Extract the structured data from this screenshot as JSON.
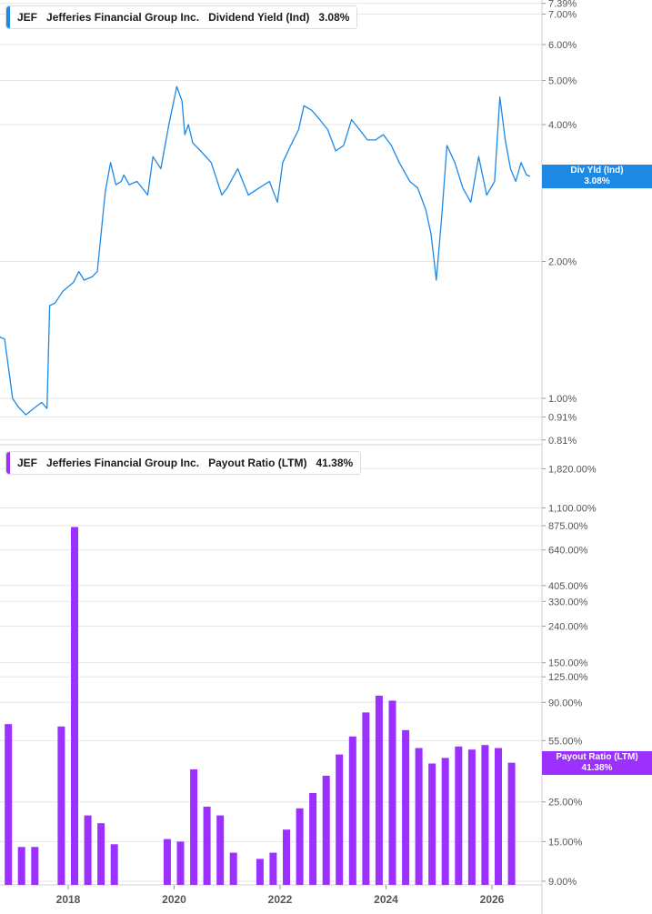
{
  "colors": {
    "yield": "#1e88e5",
    "payout": "#9b30ff",
    "grid": "#e6e6e6",
    "axis_text": "#555555"
  },
  "top_legend": {
    "ticker": "JEF",
    "company": "Jefferies Financial Group Inc.",
    "metric": "Dividend Yield (Ind)",
    "value": "3.08%"
  },
  "bottom_legend": {
    "ticker": "JEF",
    "company": "Jefferies Financial Group Inc.",
    "metric": "Payout Ratio (LTM)",
    "value": "41.38%"
  },
  "yield_tag": {
    "label": "Div Yld (Ind)",
    "value": "3.08%"
  },
  "payout_tag": {
    "label": "Payout Ratio (LTM)",
    "value": "41.38%"
  },
  "chart_data": [
    {
      "type": "line",
      "title": "Dividend Yield (Ind)",
      "scale": "log",
      "y_ticks": [
        "7.39%",
        "7.00%",
        "6.00%",
        "5.00%",
        "4.00%",
        "2.00%",
        "1.00%",
        "0.91%",
        "0.81%"
      ],
      "y_tick_values": [
        7.39,
        7.0,
        6.0,
        5.0,
        4.0,
        2.0,
        1.0,
        0.91,
        0.81
      ],
      "x_ticks": [
        "2018",
        "2020",
        "2022",
        "2024",
        "2026"
      ],
      "series": [
        {
          "name": "Dividend Yield (Ind)",
          "x": [
            2016.6,
            2016.8,
            2016.95,
            2017.05,
            2017.2,
            2017.35,
            2017.5,
            2017.6,
            2017.65,
            2017.75,
            2017.9,
            2018.1,
            2018.2,
            2018.3,
            2018.45,
            2018.55,
            2018.7,
            2018.8,
            2018.9,
            2019.0,
            2019.05,
            2019.15,
            2019.3,
            2019.5,
            2019.6,
            2019.75,
            2019.9,
            2020.05,
            2020.15,
            2020.2,
            2020.27,
            2020.35,
            2020.5,
            2020.7,
            2020.9,
            2021.0,
            2021.2,
            2021.4,
            2021.6,
            2021.8,
            2021.95,
            2022.05,
            2022.2,
            2022.35,
            2022.45,
            2022.6,
            2022.75,
            2022.9,
            2023.05,
            2023.2,
            2023.35,
            2023.5,
            2023.65,
            2023.8,
            2023.95,
            2024.1,
            2024.25,
            2024.45,
            2024.6,
            2024.75,
            2024.85,
            2024.95,
            2025.05,
            2025.15,
            2025.3,
            2025.45,
            2025.6,
            2025.75,
            2025.9,
            2026.05,
            2026.15,
            2026.25,
            2026.35,
            2026.45,
            2026.55,
            2026.65,
            2026.72
          ],
          "y": [
            1.38,
            1.35,
            1.0,
            0.96,
            0.92,
            0.95,
            0.98,
            0.95,
            1.6,
            1.62,
            1.72,
            1.8,
            1.9,
            1.82,
            1.85,
            1.9,
            2.85,
            3.3,
            2.95,
            3.0,
            3.1,
            2.95,
            3.0,
            2.8,
            3.4,
            3.2,
            4.0,
            4.85,
            4.5,
            3.8,
            4.0,
            3.65,
            3.5,
            3.3,
            2.8,
            2.9,
            3.2,
            2.8,
            2.9,
            3.0,
            2.7,
            3.3,
            3.6,
            3.9,
            4.4,
            4.3,
            4.1,
            3.9,
            3.5,
            3.6,
            4.1,
            3.9,
            3.7,
            3.7,
            3.8,
            3.6,
            3.3,
            3.0,
            2.9,
            2.6,
            2.3,
            1.82,
            2.5,
            3.6,
            3.3,
            2.9,
            2.7,
            3.4,
            2.8,
            3.0,
            4.6,
            3.7,
            3.2,
            3.0,
            3.3,
            3.1,
            3.08
          ]
        }
      ]
    },
    {
      "type": "bar",
      "title": "Payout Ratio (LTM)",
      "scale": "log",
      "y_ticks": [
        "1,820.00%",
        "1,100.00%",
        "875.00%",
        "640.00%",
        "405.00%",
        "330.00%",
        "240.00%",
        "150.00%",
        "125.00%",
        "90.00%",
        "55.00%",
        "25.00%",
        "15.00%",
        "9.00%"
      ],
      "y_tick_values": [
        1820,
        1100,
        875,
        640,
        405,
        330,
        240,
        150,
        125,
        90,
        55,
        25,
        15,
        9
      ],
      "x_ticks": [
        "2018",
        "2020",
        "2022",
        "2024",
        "2026"
      ],
      "series": [
        {
          "name": "Payout Ratio (LTM)",
          "x": [
            2016.62,
            2016.87,
            2017.12,
            2017.37,
            2017.87,
            2018.12,
            2018.37,
            2018.62,
            2018.87,
            2019.87,
            2020.12,
            2020.37,
            2020.62,
            2020.87,
            2021.12,
            2021.62,
            2021.87,
            2022.12,
            2022.37,
            2022.62,
            2022.87,
            2023.12,
            2023.37,
            2023.62,
            2023.87,
            2024.12,
            2024.37,
            2024.62,
            2024.87,
            2025.12,
            2025.37,
            2025.62,
            2025.87,
            2026.12,
            2026.37
          ],
          "y": [
            190,
            68,
            14,
            14,
            66,
            860,
            21,
            19,
            14.5,
            15.5,
            15,
            38,
            23.5,
            21,
            13,
            12,
            13,
            17.5,
            23,
            28,
            35,
            46,
            58,
            79,
            98,
            92,
            63,
            50,
            41,
            44,
            51,
            49,
            52,
            50,
            41.38
          ]
        }
      ]
    }
  ]
}
